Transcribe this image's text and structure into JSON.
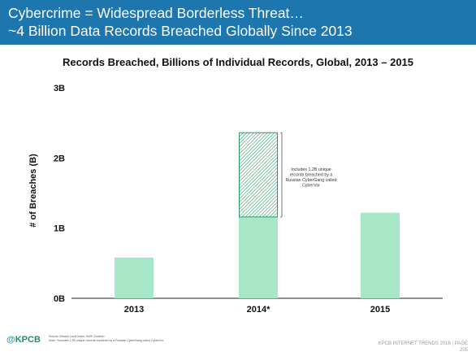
{
  "header": {
    "line1": "Cybercrime = Widespread Borderless Threat…",
    "line2": "~4 Billion Data Records Breached Globally Since 2013",
    "background": "#1d76ad"
  },
  "footer": {
    "logo_text": "KPCB",
    "logo_prefix": "@",
    "source_line1": "Source: Breach Level Index, KMS Gontech",
    "source_line2": "Note: *Includes 1.2B unique records breached by a Russian CyberGang called CyberVor.",
    "brand": "KPCB INTERNET TRENDS 2016",
    "page_label": "PAGE",
    "page_number": "205"
  },
  "chart_data": {
    "type": "bar",
    "title": "Records Breached, Billions of Individual Records, Global, 2013 – 2015",
    "ylabel": "# of Breaches (B)",
    "xlabel": "",
    "categories": [
      "2013",
      "2014*",
      "2015"
    ],
    "values": [
      0.58,
      2.36,
      1.22
    ],
    "stacked_breakdown": {
      "category": "2014*",
      "segments": [
        {
          "label": "",
          "value": 1.16,
          "style": "solid"
        },
        {
          "label": "",
          "value": 1.2,
          "style": "hatched"
        }
      ]
    },
    "annotation": "Includes 1.2B unique records breached by a Russian CyberGang called CyberVor",
    "ylim": [
      0,
      3
    ],
    "yticks": [
      0,
      1,
      2,
      3
    ],
    "ytick_labels": [
      "0B",
      "1B",
      "2B",
      "3B"
    ],
    "grid": false,
    "legend": "none",
    "bar_color": "#a8e6c8",
    "hatch_color": "#2e9a68"
  }
}
